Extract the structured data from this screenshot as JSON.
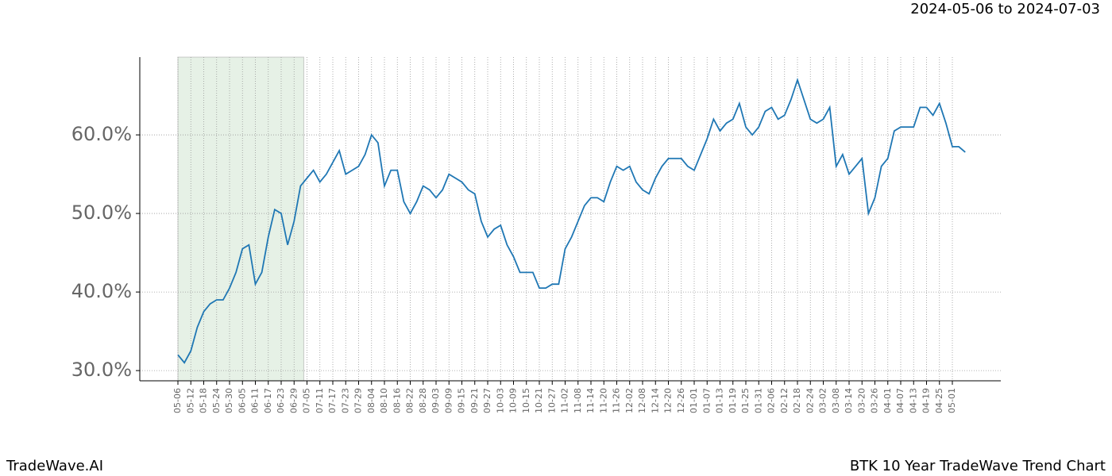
{
  "chart_data": {
    "type": "line",
    "subtitle": "2024-05-06 to 2024-07-03",
    "footer_left": "TradeWave.AI",
    "footer_right": "BTK 10 Year TradeWave Trend Chart",
    "categories": [
      "05-06",
      null,
      "05-12",
      null,
      "05-18",
      null,
      "05-24",
      null,
      "05-30",
      null,
      "06-05",
      null,
      "06-11",
      null,
      "06-17",
      null,
      "06-23",
      null,
      "06-29",
      null,
      "07-05",
      null,
      "07-11",
      null,
      "07-17",
      null,
      "07-23",
      null,
      "07-29",
      null,
      "08-04",
      null,
      "08-10",
      null,
      "08-16",
      null,
      "08-22",
      null,
      "08-28",
      null,
      "09-03",
      null,
      "09-09",
      null,
      "09-15",
      null,
      "09-21",
      null,
      "09-27",
      null,
      "10-03",
      null,
      "10-09",
      null,
      "10-15",
      null,
      "10-21",
      null,
      "10-27",
      null,
      "11-02",
      null,
      "11-08",
      null,
      "11-14",
      null,
      "11-20",
      null,
      "11-26",
      null,
      "12-02",
      null,
      "12-08",
      null,
      "12-14",
      null,
      "12-20",
      null,
      "12-26",
      null,
      "01-01",
      null,
      "01-07",
      null,
      "01-13",
      null,
      "01-19",
      null,
      "01-25",
      null,
      "01-31",
      null,
      "02-06",
      null,
      "02-12",
      null,
      "02-18",
      null,
      "02-24",
      null,
      "03-02",
      null,
      "03-08",
      null,
      "03-14",
      null,
      "03-20",
      null,
      "03-26",
      null,
      "04-01",
      null,
      "04-07",
      null,
      "04-13",
      null,
      "04-19",
      null,
      "04-25",
      null,
      "05-01",
      null,
      null
    ],
    "series": [
      {
        "name": "BTK",
        "color": "#1f77b4",
        "values": [
          32,
          31,
          32.5,
          35.5,
          37.5,
          38.5,
          39,
          39,
          40.5,
          42.5,
          45.5,
          46,
          41,
          42.5,
          47,
          50.5,
          50,
          46,
          49,
          53.5,
          54.5,
          55.5,
          54,
          55,
          56.5,
          58,
          55,
          55.5,
          56,
          57.5,
          60,
          59,
          53.5,
          55.5,
          55.5,
          51.5,
          50,
          51.5,
          53.5,
          53,
          52,
          53,
          55,
          54.5,
          54,
          53,
          52.5,
          49,
          47,
          48,
          48.5,
          46,
          44.5,
          42.5,
          42.5,
          42.5,
          40.5,
          40.5,
          41,
          41,
          45.5,
          47,
          49,
          51,
          52,
          52,
          51.5,
          54,
          56,
          55.5,
          56,
          54,
          53,
          52.5,
          54.5,
          56,
          57,
          57,
          57,
          56,
          55.5,
          57.5,
          59.5,
          62,
          60.5,
          61.5,
          62,
          64,
          61,
          60,
          61,
          63,
          63.5,
          62,
          62.5,
          64.5,
          67,
          64.5,
          62,
          61.5,
          62,
          63.5,
          56,
          57.5,
          55,
          56,
          57,
          50,
          52,
          56,
          57,
          60.5,
          61,
          61,
          61,
          63.5,
          63.5,
          62.5,
          64,
          61.5,
          58.5,
          58.5,
          57.8
        ]
      }
    ],
    "highlight": [
      0,
      19.5
    ],
    "ylim": [
      28.7,
      69.9
    ],
    "yticks": [
      {
        "value": 30,
        "label": "30.0%"
      },
      {
        "value": 40,
        "label": "40.0%"
      },
      {
        "value": 50,
        "label": "50.0%"
      },
      {
        "value": 60,
        "label": "60.0%"
      }
    ],
    "grid": true
  }
}
